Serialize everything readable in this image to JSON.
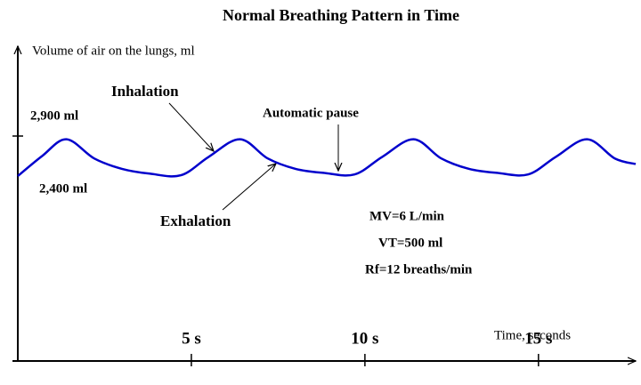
{
  "chart_data": {
    "type": "line",
    "title": "Normal Breathing Pattern in Time",
    "y_label": "Volume of air on the lungs, ml",
    "x_label": "Time, seconds",
    "annotations": [
      "Inhalation",
      "Automatic pause",
      "Exhalation",
      "MV=6 L/min",
      "VT=500 ml",
      "Rf=12 breaths/min"
    ],
    "x": [
      0,
      0.7,
      1.4,
      2.2,
      3.0,
      3.8,
      4.7,
      5.5,
      6.4,
      7.2,
      8.0,
      8.8,
      9.7,
      10.5,
      11.4,
      12.2,
      13.0,
      13.8,
      14.7,
      15.5,
      16.4,
      17.2,
      17.8
    ],
    "series": [
      {
        "name": "Volume",
        "color": "#0000cc",
        "values": [
          2400,
          2650,
          2860,
          2620,
          2490,
          2430,
          2410,
          2640,
          2860,
          2620,
          2490,
          2440,
          2420,
          2640,
          2860,
          2620,
          2490,
          2440,
          2420,
          2640,
          2860,
          2620,
          2550
        ]
      }
    ],
    "xlim": [
      0,
      17.8
    ],
    "ylim": [
      100,
      4000
    ],
    "xticks": [
      {
        "value": 5,
        "label": "5 s"
      },
      {
        "value": 10,
        "label": "10 s"
      },
      {
        "value": 15,
        "label": "15 s"
      }
    ],
    "yticks": [
      {
        "value": 2900,
        "label": "2,900 ml"
      },
      {
        "value": 2400,
        "label": "2,400 ml"
      }
    ]
  }
}
